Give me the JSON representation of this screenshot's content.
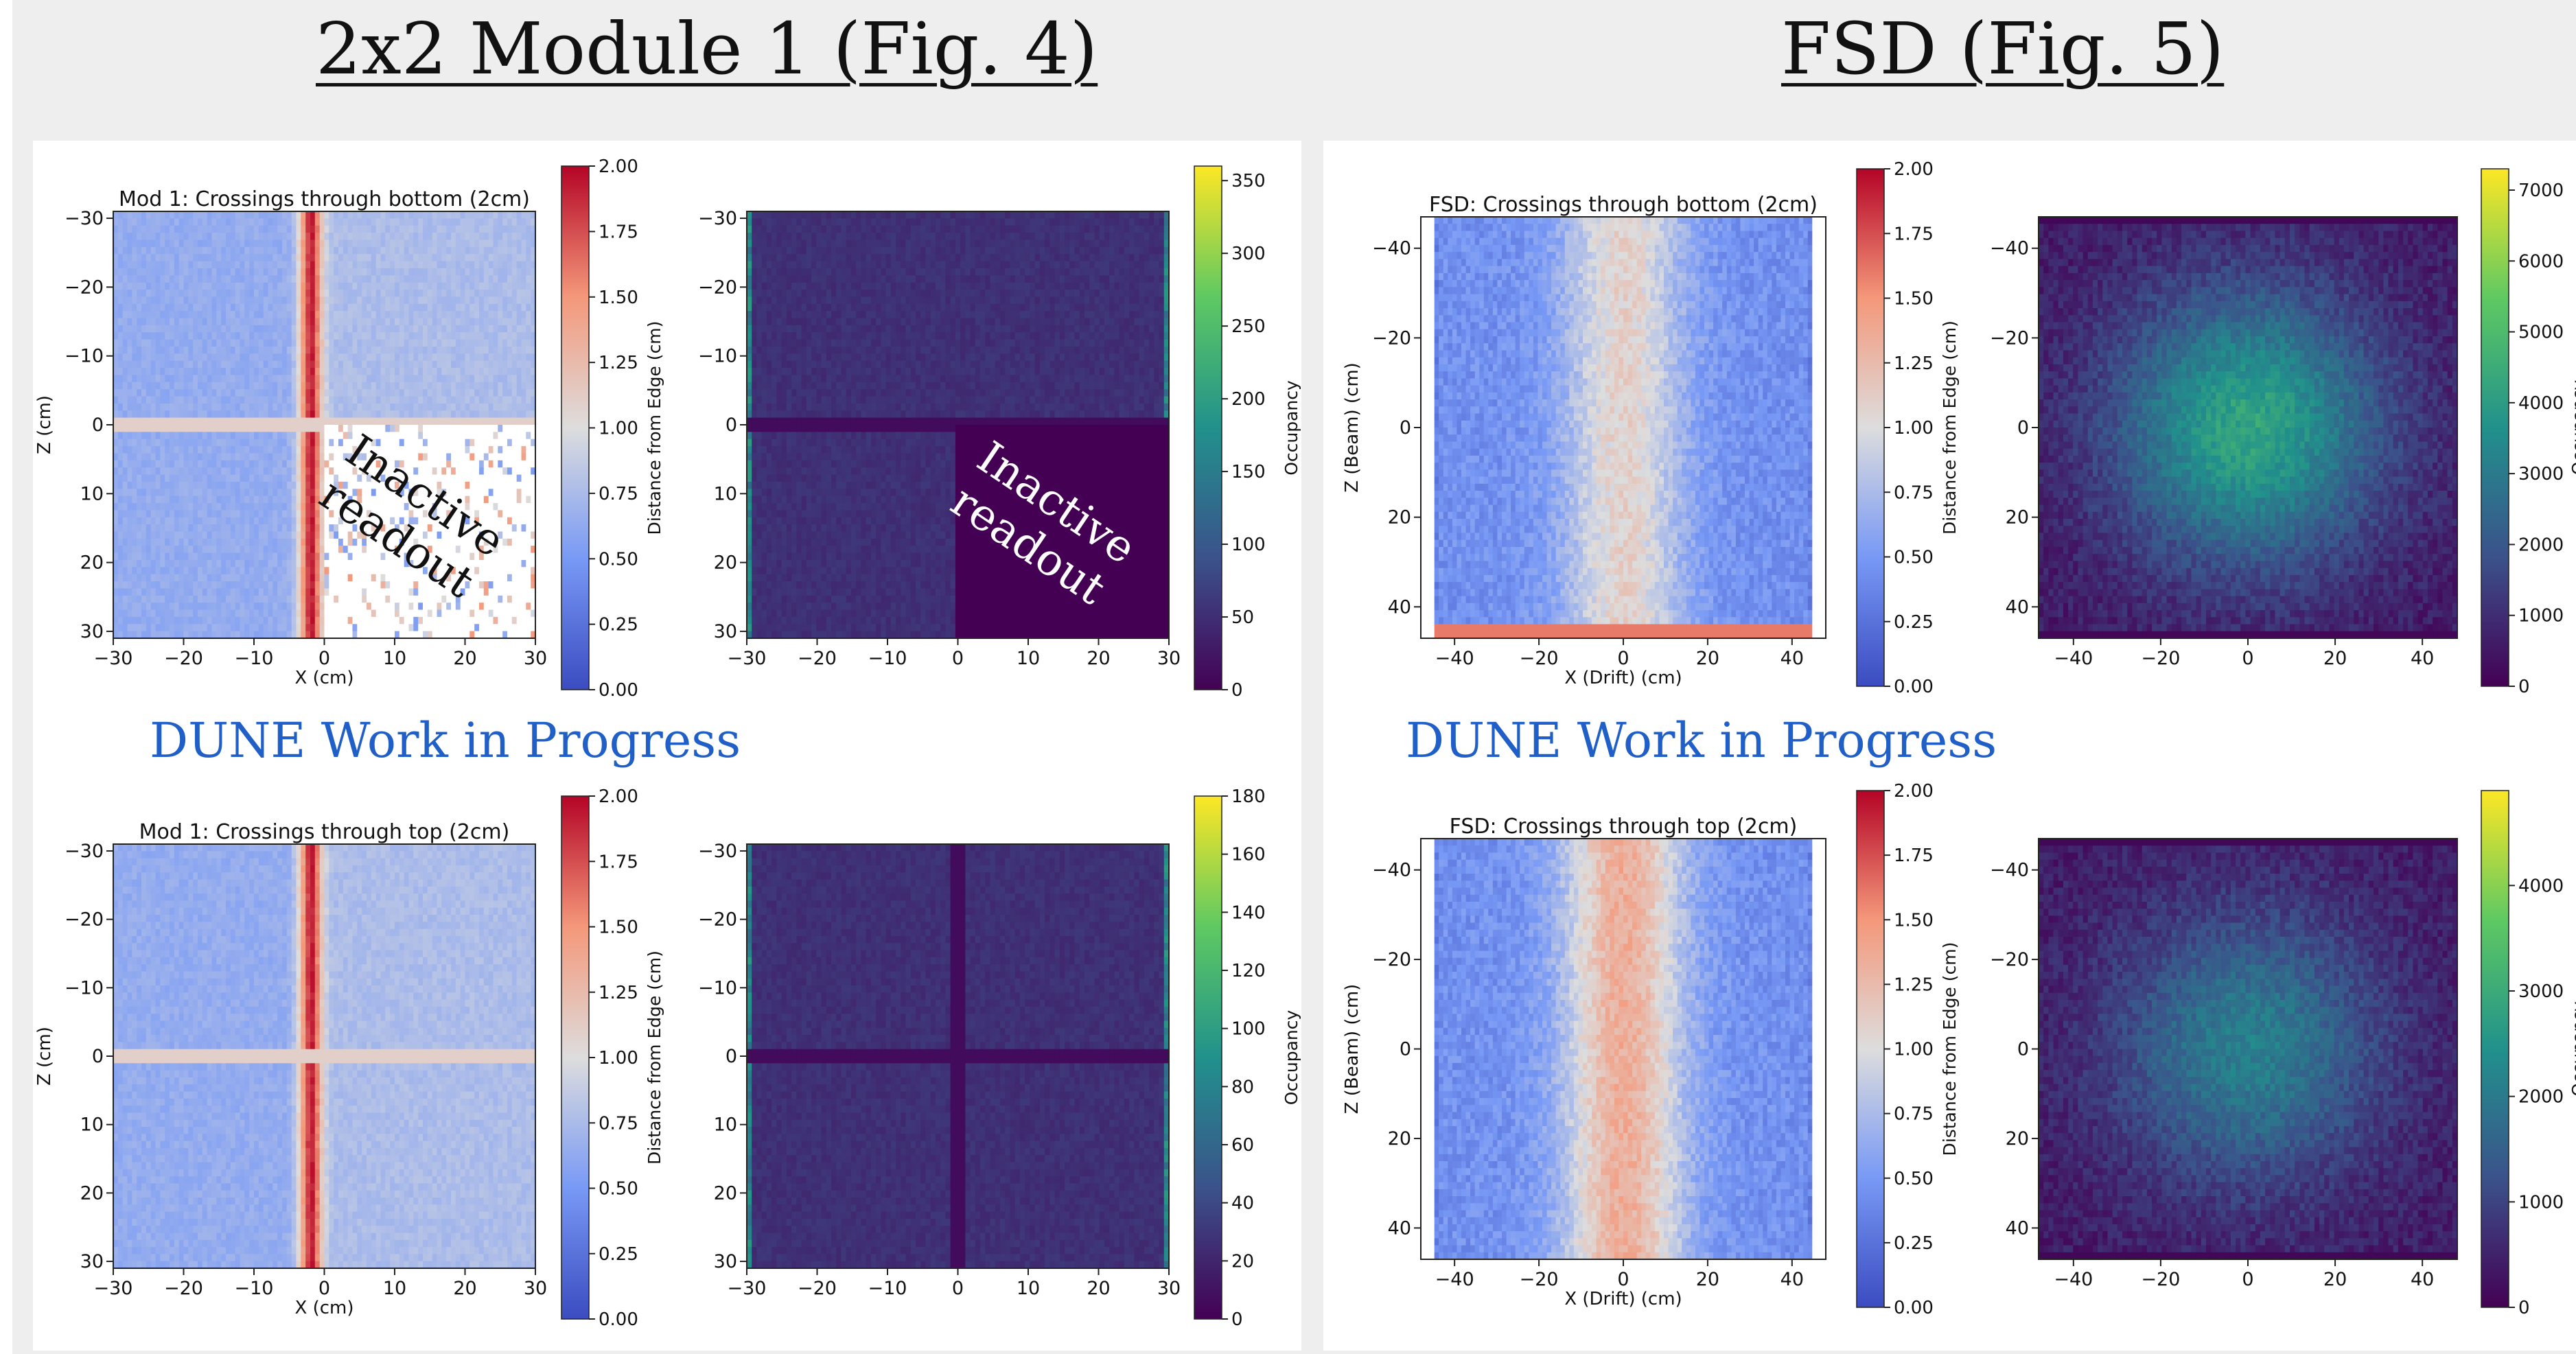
{
  "titles": {
    "left": "2x2 Module 1 (Fig. 4)",
    "right": "FSD (Fig. 5)"
  },
  "watermarks": [
    "DUNE Work in Progress",
    "DUNE Work in Progress"
  ],
  "annotations": {
    "inactive_line1": "Inactive",
    "inactive_line2": "readout"
  },
  "colors": {
    "wip": "#1f5fc7",
    "background_band": "#eeeeee",
    "viridis_dark": "#3d1f5c",
    "coolwarm_blue": "#6f93ee",
    "coolwarm_red": "#b40426"
  },
  "chart_data": [
    {
      "id": "mod1_bottom_distance",
      "type": "heatmap",
      "title": "Mod 1: Crossings through bottom (2cm)",
      "xlabel": "X (cm)",
      "ylabel": "Z (cm)",
      "xlim": [
        -30,
        30
      ],
      "ylim": [
        -31,
        31
      ],
      "xticks": [
        -30,
        -20,
        -10,
        0,
        10,
        20,
        30
      ],
      "yticks": [
        -30,
        -20,
        -10,
        0,
        10,
        20,
        30
      ],
      "colormap": "coolwarm",
      "colorbar": {
        "label": "Distance from Edge (cm)",
        "min": 0,
        "max": 2,
        "ticks": [
          "0.00",
          "0.25",
          "0.50",
          "0.75",
          "1.00",
          "1.25",
          "1.50",
          "1.75",
          "2.00"
        ]
      },
      "inactive_region": {
        "x": [
          0,
          30
        ],
        "z": [
          0,
          30
        ]
      }
    },
    {
      "id": "mod1_bottom_occupancy",
      "type": "heatmap",
      "title": "",
      "xlim": [
        -30,
        30
      ],
      "ylim": [
        -31,
        31
      ],
      "xticks": [
        -30,
        -20,
        -10,
        0,
        10,
        20,
        30
      ],
      "yticks": [
        -30,
        -20,
        -10,
        0,
        10,
        20,
        30
      ],
      "colormap": "viridis",
      "colorbar": {
        "label": "Occupancy",
        "min": 0,
        "max": 360,
        "ticks": [
          "0",
          "50",
          "100",
          "150",
          "200",
          "250",
          "300",
          "350"
        ]
      },
      "inactive_region": {
        "x": [
          0,
          30
        ],
        "z": [
          0,
          30
        ]
      }
    },
    {
      "id": "mod1_top_distance",
      "type": "heatmap",
      "title": "Mod 1: Crossings through top (2cm)",
      "xlabel": "X (cm)",
      "ylabel": "Z (cm)",
      "xlim": [
        -30,
        30
      ],
      "ylim": [
        -31,
        31
      ],
      "xticks": [
        -30,
        -20,
        -10,
        0,
        10,
        20,
        30
      ],
      "yticks": [
        -30,
        -20,
        -10,
        0,
        10,
        20,
        30
      ],
      "colormap": "coolwarm",
      "colorbar": {
        "label": "Distance from Edge (cm)",
        "min": 0,
        "max": 2,
        "ticks": [
          "0.00",
          "0.25",
          "0.50",
          "0.75",
          "1.00",
          "1.25",
          "1.50",
          "1.75",
          "2.00"
        ]
      }
    },
    {
      "id": "mod1_top_occupancy",
      "type": "heatmap",
      "title": "",
      "xlim": [
        -30,
        30
      ],
      "ylim": [
        -31,
        31
      ],
      "xticks": [
        -30,
        -20,
        -10,
        0,
        10,
        20,
        30
      ],
      "yticks": [
        -30,
        -20,
        -10,
        0,
        10,
        20,
        30
      ],
      "colormap": "viridis",
      "colorbar": {
        "label": "Occupancy",
        "min": 0,
        "max": 180,
        "ticks": [
          "0",
          "20",
          "40",
          "60",
          "80",
          "100",
          "120",
          "140",
          "160",
          "180"
        ]
      }
    },
    {
      "id": "fsd_bottom_distance",
      "type": "heatmap",
      "title": "FSD: Crossings through bottom (2cm)",
      "xlabel": "X (Drift) (cm)",
      "ylabel": "Z (Beam) (cm)",
      "xlim": [
        -48,
        48
      ],
      "ylim": [
        -47,
        47
      ],
      "xticks": [
        -40,
        -20,
        0,
        20,
        40
      ],
      "yticks": [
        -40,
        -20,
        0,
        20,
        40
      ],
      "colormap": "coolwarm",
      "colorbar": {
        "label": "Distance from Edge (cm)",
        "min": 0,
        "max": 2,
        "ticks": [
          "0.00",
          "0.25",
          "0.50",
          "0.75",
          "1.00",
          "1.25",
          "1.50",
          "1.75",
          "2.00"
        ]
      }
    },
    {
      "id": "fsd_bottom_occupancy",
      "type": "heatmap",
      "title": "",
      "xlim": [
        -48,
        48
      ],
      "ylim": [
        -47,
        47
      ],
      "xticks": [
        -40,
        -20,
        0,
        20,
        40
      ],
      "yticks": [
        -40,
        -20,
        0,
        20,
        40
      ],
      "colormap": "viridis",
      "colorbar": {
        "label": "Occupancy",
        "min": 0,
        "max": 7300,
        "ticks": [
          "0",
          "1000",
          "2000",
          "3000",
          "4000",
          "5000",
          "6000",
          "7000"
        ]
      }
    },
    {
      "id": "fsd_top_distance",
      "type": "heatmap",
      "title": "FSD: Crossings through top (2cm)",
      "xlabel": "X (Drift) (cm)",
      "ylabel": "Z (Beam) (cm)",
      "xlim": [
        -48,
        48
      ],
      "ylim": [
        -47,
        47
      ],
      "xticks": [
        -40,
        -20,
        0,
        20,
        40
      ],
      "yticks": [
        -40,
        -20,
        0,
        20,
        40
      ],
      "colormap": "coolwarm",
      "colorbar": {
        "label": "Distance from Edge (cm)",
        "min": 0,
        "max": 2,
        "ticks": [
          "0.00",
          "0.25",
          "0.50",
          "0.75",
          "1.00",
          "1.25",
          "1.50",
          "1.75",
          "2.00"
        ]
      }
    },
    {
      "id": "fsd_top_occupancy",
      "type": "heatmap",
      "title": "",
      "xlim": [
        -48,
        48
      ],
      "ylim": [
        -47,
        47
      ],
      "xticks": [
        -40,
        -20,
        0,
        20,
        40
      ],
      "yticks": [
        -40,
        -20,
        0,
        20,
        40
      ],
      "colormap": "viridis",
      "colorbar": {
        "label": "Occupancy",
        "min": 0,
        "max": 4900,
        "ticks": [
          "0",
          "1000",
          "2000",
          "3000",
          "4000"
        ]
      }
    }
  ]
}
